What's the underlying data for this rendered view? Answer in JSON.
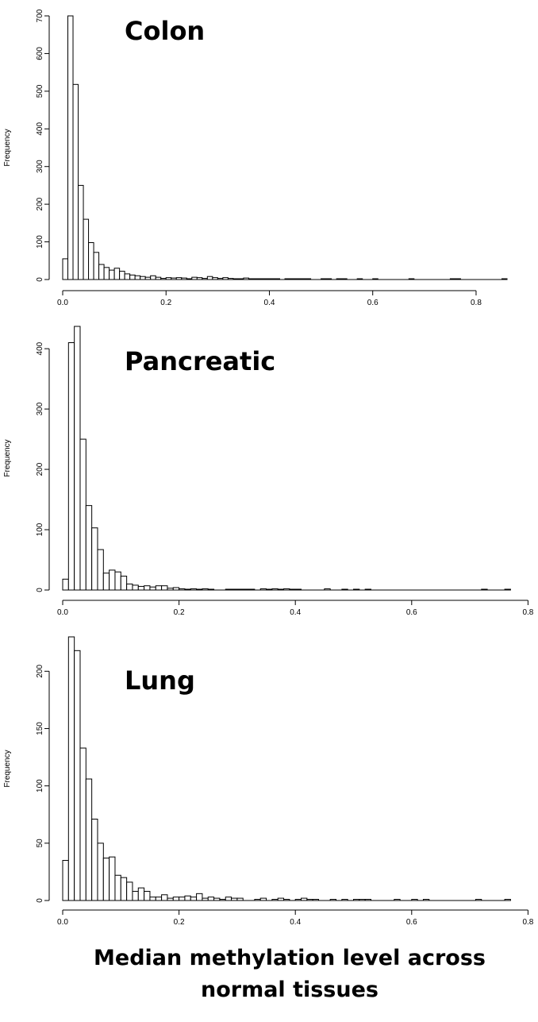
{
  "x_axis_label": [
    "Median methylation level across",
    "normal tissues"
  ],
  "chart_data": [
    {
      "type": "histogram",
      "title": "Colon",
      "ylabel": "Frequency",
      "bin_width": 0.01,
      "x_ticks": [
        0.0,
        0.2,
        0.4,
        0.6,
        0.8
      ],
      "x_tick_labels": [
        "0.0",
        "0.2",
        "0.4",
        "0.6",
        "0.8"
      ],
      "y_ticks": [
        0,
        100,
        200,
        300,
        400,
        500,
        600,
        700
      ],
      "xlim": [
        0.0,
        0.86
      ],
      "ylim": [
        0,
        700
      ],
      "counts": [
        55,
        700,
        518,
        250,
        160,
        98,
        72,
        40,
        32,
        25,
        30,
        22,
        15,
        12,
        10,
        8,
        6,
        10,
        6,
        3,
        5,
        4,
        5,
        4,
        2,
        6,
        5,
        3,
        8,
        5,
        3,
        5,
        3,
        2,
        2,
        4,
        2,
        2,
        1,
        1,
        1,
        1,
        0,
        2,
        1,
        1,
        1,
        1,
        0,
        0,
        1,
        2,
        0,
        1,
        2,
        0,
        0,
        1,
        0,
        0,
        1,
        0,
        0,
        0,
        0,
        0,
        0,
        1,
        0,
        0,
        0,
        0,
        0,
        0,
        0,
        1,
        1,
        0,
        0,
        0,
        0,
        0,
        0,
        0,
        0,
        1
      ]
    },
    {
      "type": "histogram",
      "title": "Pancreatic",
      "ylabel": "Frequency",
      "bin_width": 0.01,
      "x_ticks": [
        0.0,
        0.2,
        0.4,
        0.6,
        0.8
      ],
      "x_tick_labels": [
        "0.0",
        "0.2",
        "0.4",
        "0.6",
        "0.8"
      ],
      "y_ticks": [
        0,
        100,
        200,
        300,
        400
      ],
      "xlim": [
        0.0,
        0.77
      ],
      "ylim": [
        0,
        437
      ],
      "counts": [
        18,
        410,
        437,
        250,
        140,
        103,
        67,
        28,
        33,
        30,
        23,
        10,
        8,
        6,
        7,
        5,
        7,
        7,
        3,
        4,
        2,
        1,
        2,
        1,
        2,
        1,
        0,
        0,
        1,
        1,
        1,
        1,
        1,
        0,
        2,
        1,
        2,
        1,
        2,
        1,
        1,
        0,
        0,
        0,
        0,
        2,
        0,
        0,
        1,
        0,
        1,
        0,
        1,
        0,
        0,
        0,
        0,
        0,
        0,
        0,
        0,
        0,
        0,
        0,
        0,
        0,
        0,
        0,
        0,
        0,
        0,
        0,
        1,
        0,
        0,
        0,
        1
      ]
    },
    {
      "type": "histogram",
      "title": "Lung",
      "ylabel": "Frequency",
      "bin_width": 0.01,
      "x_ticks": [
        0.0,
        0.2,
        0.4,
        0.6,
        0.8
      ],
      "x_tick_labels": [
        "0.0",
        "0.2",
        "0.4",
        "0.6",
        "0.8"
      ],
      "y_ticks": [
        0,
        50,
        100,
        150,
        200
      ],
      "xlim": [
        0.0,
        0.77
      ],
      "ylim": [
        0,
        230
      ],
      "counts": [
        35,
        230,
        218,
        133,
        106,
        71,
        50,
        37,
        38,
        22,
        20,
        16,
        8,
        11,
        8,
        3,
        3,
        5,
        2,
        3,
        3,
        4,
        3,
        6,
        2,
        3,
        2,
        1,
        3,
        2,
        2,
        0,
        0,
        1,
        2,
        0,
        1,
        2,
        1,
        0,
        1,
        2,
        1,
        1,
        0,
        0,
        1,
        0,
        1,
        0,
        1,
        1,
        1,
        0,
        0,
        0,
        0,
        1,
        0,
        0,
        1,
        0,
        1,
        0,
        0,
        0,
        0,
        0,
        0,
        0,
        0,
        1,
        0,
        0,
        0,
        0,
        1
      ]
    }
  ]
}
